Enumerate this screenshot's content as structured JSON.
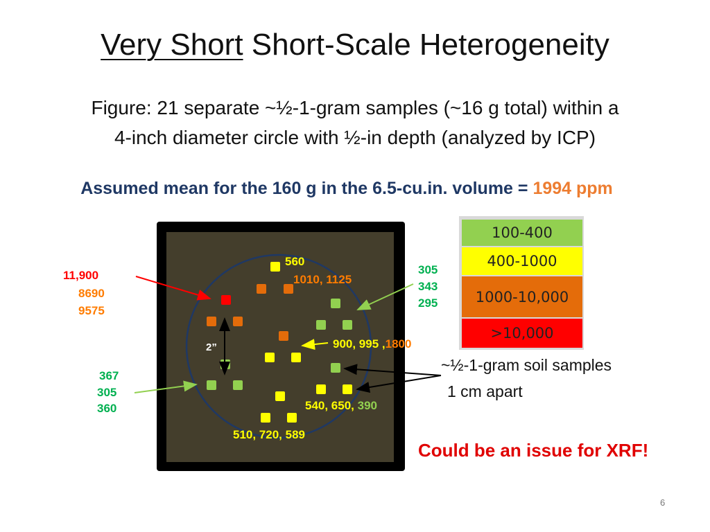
{
  "title": {
    "underlined": "Very Short",
    "rest": "Short-Scale Heterogeneity"
  },
  "subtitle": {
    "line1": "Figure: 21 separate ~½-1-gram samples (~16 g total) within a",
    "line2": "4-inch diameter circle with ½-in depth (analyzed by ICP)"
  },
  "assumed_mean": {
    "prefix": "Assumed mean for the 160 g in the 6.5-cu.in. volume = ",
    "value": "1994 ppm"
  },
  "colors": {
    "yellow": "#ffff00",
    "orange": "#e46c0a",
    "green": "#92d050",
    "red": "#ff0000",
    "soil": "#443e2c",
    "circle": "#1f3864"
  },
  "annotations": {
    "top_center": "560",
    "top_center_2": "1010, 1125",
    "left_red": "11,900",
    "left_o1": "8690",
    "left_o2": "9575",
    "right_g1": "305",
    "right_g2": "343",
    "right_g3": "295",
    "mid_yellow": "900, 995 ,",
    "mid_orange": "1800",
    "bl_g1": "367",
    "bl_g2": "305",
    "bl_g3": "360",
    "lower_yellow": "540, 650, ",
    "lower_green": "390",
    "bottom": "510, 720, 589",
    "diameter": "2”"
  },
  "legend": [
    {
      "label": "100-400",
      "color": "#92d050"
    },
    {
      "label": "400-1000",
      "color": "#ffff00"
    },
    {
      "label": "1000-10,000",
      "color": "#e46c0a"
    },
    {
      "label": ">10,000",
      "color": "#ff0000"
    }
  ],
  "notes": {
    "samples": "~½-1-gram soil samples",
    "apart": "1 cm apart",
    "xrf": "Could be an issue for XRF!"
  },
  "page_number": "6"
}
